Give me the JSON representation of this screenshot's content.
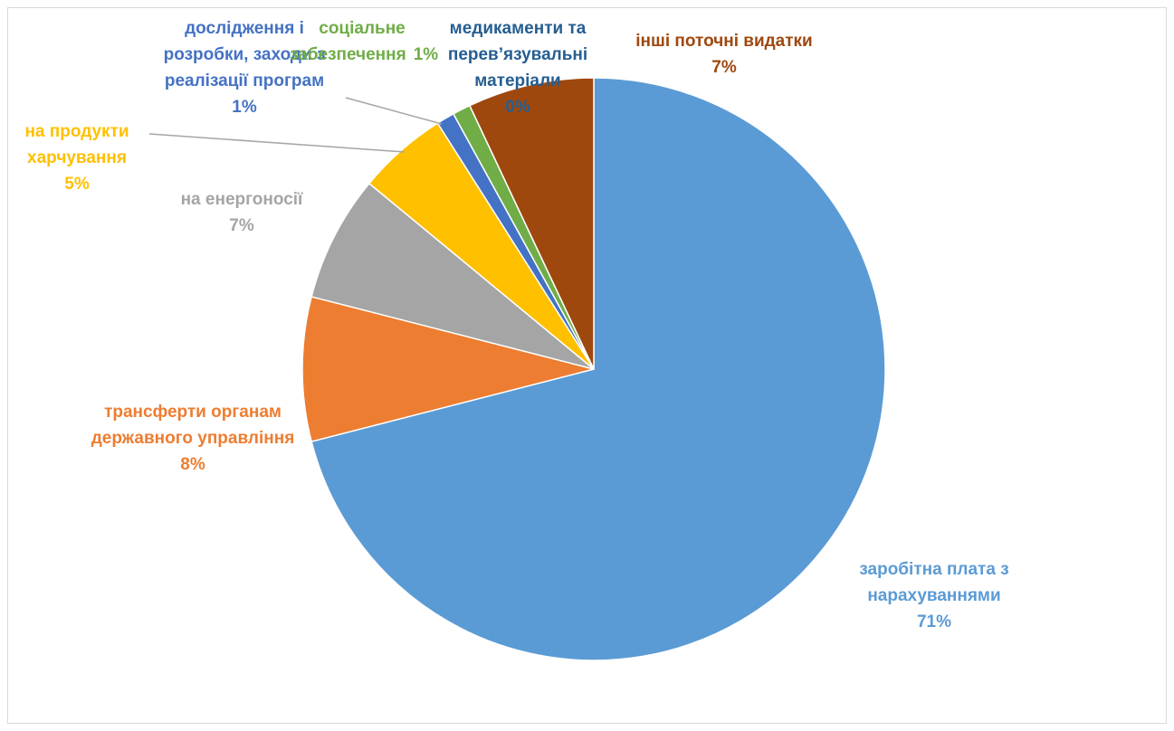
{
  "chart_data": {
    "type": "pie",
    "categories": [
      "заробітна плата з нарахуваннями",
      "трансферти органам державного управління",
      "на енергоносії",
      "на продукти харчування",
      "дослідження і розробки, заходи з реалізації програм",
      "соціальне забезпечення",
      "медикаменти та перев’язувальні матеріали",
      "інші поточні видатки"
    ],
    "values": [
      71,
      8,
      7,
      5,
      1,
      1,
      0,
      7
    ],
    "value_labels": [
      "71%",
      "8%",
      "7%",
      "5%",
      "1%",
      "1%",
      "0%",
      "7%"
    ],
    "colors": [
      "#5b9bd5",
      "#ed7d31",
      "#a5a5a5",
      "#ffc000",
      "#4472c4",
      "#70ad47",
      "#255e91",
      "#9e480e"
    ]
  }
}
